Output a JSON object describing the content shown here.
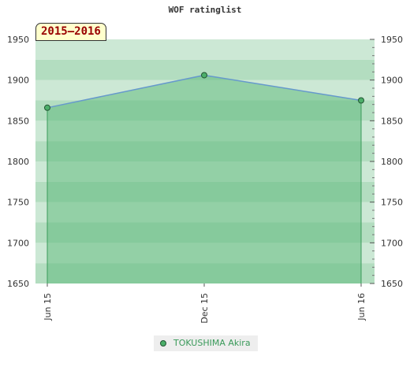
{
  "chart_data": {
    "type": "area",
    "title": "WOF ratinglist",
    "badge": "2015–2016",
    "x": [
      "Jun 15",
      "Dec 15",
      "Jun 16"
    ],
    "series": [
      {
        "name": "TOKUSHIMA Akira",
        "values": [
          1866,
          1906,
          1875
        ]
      }
    ],
    "ylim": [
      1650,
      1950
    ],
    "yticks": [
      1650,
      1700,
      1750,
      1800,
      1850,
      1900,
      1950
    ],
    "ytick_labels": [
      "1650",
      "1700",
      "1750",
      "1800",
      "1850",
      "1900",
      "1950"
    ],
    "legend_position": "bottom-center",
    "grid": true,
    "colors": {
      "band_dark": "#b3ddc0",
      "band_light": "#cce8d5",
      "area_fill": "#5ab878",
      "line": "#6699cc",
      "marker": "#4caf6a",
      "marker_edge": "#225533",
      "drop_line": "#3a9a5a"
    }
  }
}
